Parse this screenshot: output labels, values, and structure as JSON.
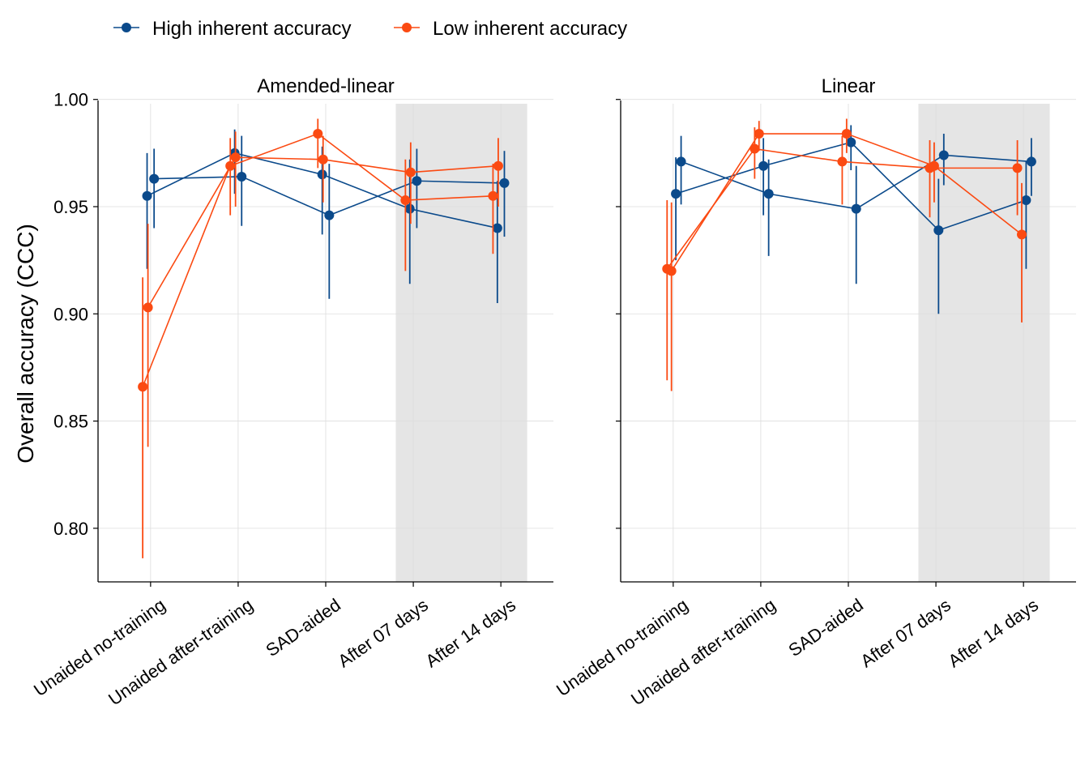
{
  "chart_data": {
    "type": "line",
    "ylabel": "Overall accuracy (CCC)",
    "xlabel": "",
    "ylim": [
      0.775,
      0.998
    ],
    "yticks": [
      "0.80",
      "0.85",
      "0.90",
      "0.95",
      "1.00"
    ],
    "ytick_values": [
      0.8,
      0.85,
      0.9,
      0.95,
      1.0
    ],
    "categories": [
      "Unaided no-training",
      "Unaided after-training",
      "SAD-aided",
      "After 07 days",
      "After 14 days"
    ],
    "shaded_categories": [
      "After 07 days",
      "After 14 days"
    ],
    "grid": true,
    "legend_position": "top-left",
    "legend": [
      {
        "name": "High inherent accuracy",
        "color": "#0b4a8b"
      },
      {
        "name": "Low inherent accuracy",
        "color": "#fb4a12"
      }
    ],
    "panels": [
      {
        "title": "Amended-linear",
        "series": [
          {
            "group": "High inherent accuracy",
            "offset": 0.04,
            "values": [
              0.963,
              0.964,
              0.946,
              0.962,
              0.961
            ],
            "lower": [
              0.94,
              0.941,
              0.907,
              0.94,
              0.936
            ],
            "upper": [
              0.977,
              0.983,
              0.97,
              0.977,
              0.976
            ]
          },
          {
            "group": "High inherent accuracy",
            "offset": -0.04,
            "values": [
              0.955,
              0.975,
              0.965,
              0.949,
              0.94
            ],
            "lower": [
              0.921,
              0.956,
              0.937,
              0.914,
              0.905
            ],
            "upper": [
              0.975,
              0.986,
              0.978,
              0.972,
              0.962
            ]
          },
          {
            "group": "Low inherent accuracy",
            "offset": -0.09,
            "values": [
              0.866,
              0.969,
              0.984,
              0.953,
              0.955
            ],
            "lower": [
              0.786,
              0.946,
              0.968,
              0.92,
              0.928
            ],
            "upper": [
              0.917,
              0.982,
              0.991,
              0.972,
              0.97
            ]
          },
          {
            "group": "Low inherent accuracy",
            "offset": -0.03,
            "values": [
              0.903,
              0.973,
              0.972,
              0.966,
              0.969
            ],
            "lower": [
              0.838,
              0.95,
              0.952,
              0.942,
              0.95
            ],
            "upper": [
              0.942,
              0.985,
              0.983,
              0.98,
              0.982
            ]
          }
        ]
      },
      {
        "title": "Linear",
        "series": [
          {
            "group": "High inherent accuracy",
            "offset": 0.09,
            "values": [
              0.971,
              0.956,
              0.949,
              0.974,
              0.971
            ],
            "lower": [
              0.951,
              0.927,
              0.914,
              0.96,
              0.955
            ],
            "upper": [
              0.983,
              0.972,
              0.969,
              0.984,
              0.982
            ]
          },
          {
            "group": "High inherent accuracy",
            "offset": 0.03,
            "values": [
              0.956,
              0.969,
              0.98,
              0.939,
              0.953
            ],
            "lower": [
              0.925,
              0.946,
              0.967,
              0.9,
              0.921
            ],
            "upper": [
              0.973,
              0.982,
              0.988,
              0.963,
              0.971
            ]
          },
          {
            "group": "Low inherent accuracy",
            "offset": -0.07,
            "values": [
              0.921,
              0.977,
              0.971,
              0.968,
              0.968
            ],
            "lower": [
              0.869,
              0.963,
              0.951,
              0.945,
              0.946
            ],
            "upper": [
              0.953,
              0.987,
              0.983,
              0.981,
              0.981
            ]
          },
          {
            "group": "Low inherent accuracy",
            "offset": -0.02,
            "values": [
              0.92,
              0.984,
              0.984,
              0.969,
              0.937
            ],
            "lower": [
              0.864,
              0.976,
              0.975,
              0.952,
              0.896
            ],
            "upper": [
              0.952,
              0.99,
              0.991,
              0.98,
              0.961
            ]
          }
        ]
      }
    ]
  }
}
